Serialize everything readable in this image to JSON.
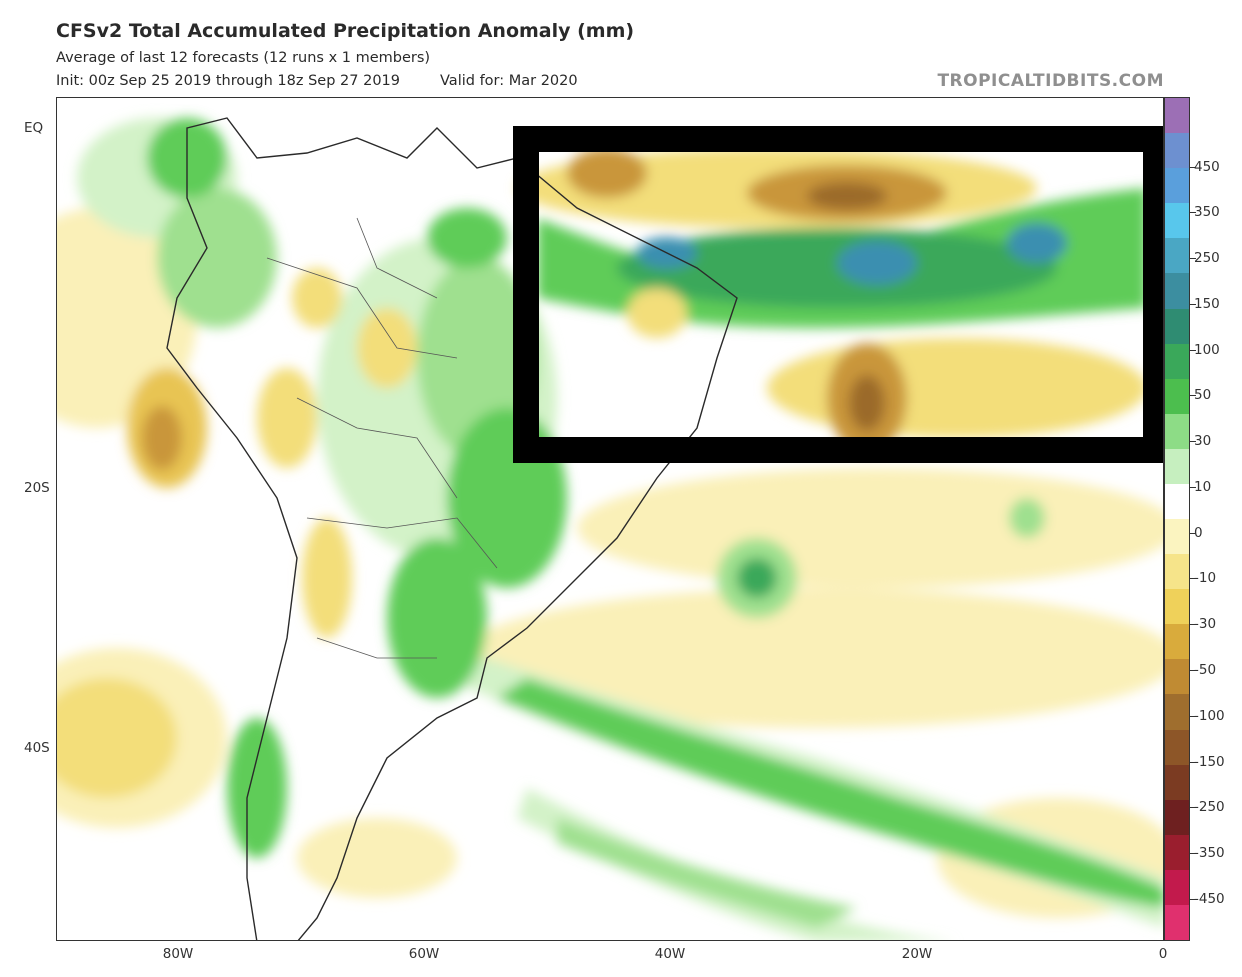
{
  "header": {
    "title": "CFSv2 Total Accumulated Precipitation Anomaly (mm)",
    "subtitle": "Average of last 12 forecasts (12 runs x 1 members)",
    "init": "Init: 00z Sep 25 2019 through 18z Sep 27 2019",
    "valid": "Valid for: Mar 2020",
    "brand": "TROPICALTIDBITS.COM"
  },
  "axes": {
    "x_labels": [
      "80W",
      "60W",
      "40W",
      "20W",
      "0"
    ],
    "y_labels": [
      "EQ",
      "20S",
      "40S"
    ]
  },
  "colorbar": {
    "labels": [
      "450",
      "350",
      "250",
      "150",
      "100",
      "50",
      "30",
      "10",
      "0",
      "-10",
      "-30",
      "-50",
      "-100",
      "-150",
      "-250",
      "-350",
      "-450"
    ],
    "colors": [
      "#9c6fb5",
      "#6d90d0",
      "#5a9fdc",
      "#58c7ec",
      "#4aa7c4",
      "#3c8ea0",
      "#2f8c72",
      "#3aa85a",
      "#4cbe4e",
      "#8ddc86",
      "#c6efbf",
      "#ffffff",
      "#fbf4c0",
      "#f6e48a",
      "#efd15a",
      "#d9ab3c",
      "#c08b33",
      "#9f6e2e",
      "#8d5628",
      "#7b3b22",
      "#6e2020",
      "#9a1e2e",
      "#c21a4c",
      "#e0306e"
    ]
  },
  "map_legend": {
    "colors": {
      "dry1": "#faf0b8",
      "dry2": "#f3de7a",
      "dry3": "#e8c453",
      "dry4": "#c9963a",
      "dry5": "#9b6a2c",
      "wet1": "#d3f2c8",
      "wet2": "#9fe08f",
      "wet3": "#5fcc58",
      "wet4": "#3aa85a",
      "wet5": "#2f9177",
      "wet6": "#3a8fb0",
      "land_line": "#2a2a2a",
      "highlight_box": "#000000"
    }
  }
}
